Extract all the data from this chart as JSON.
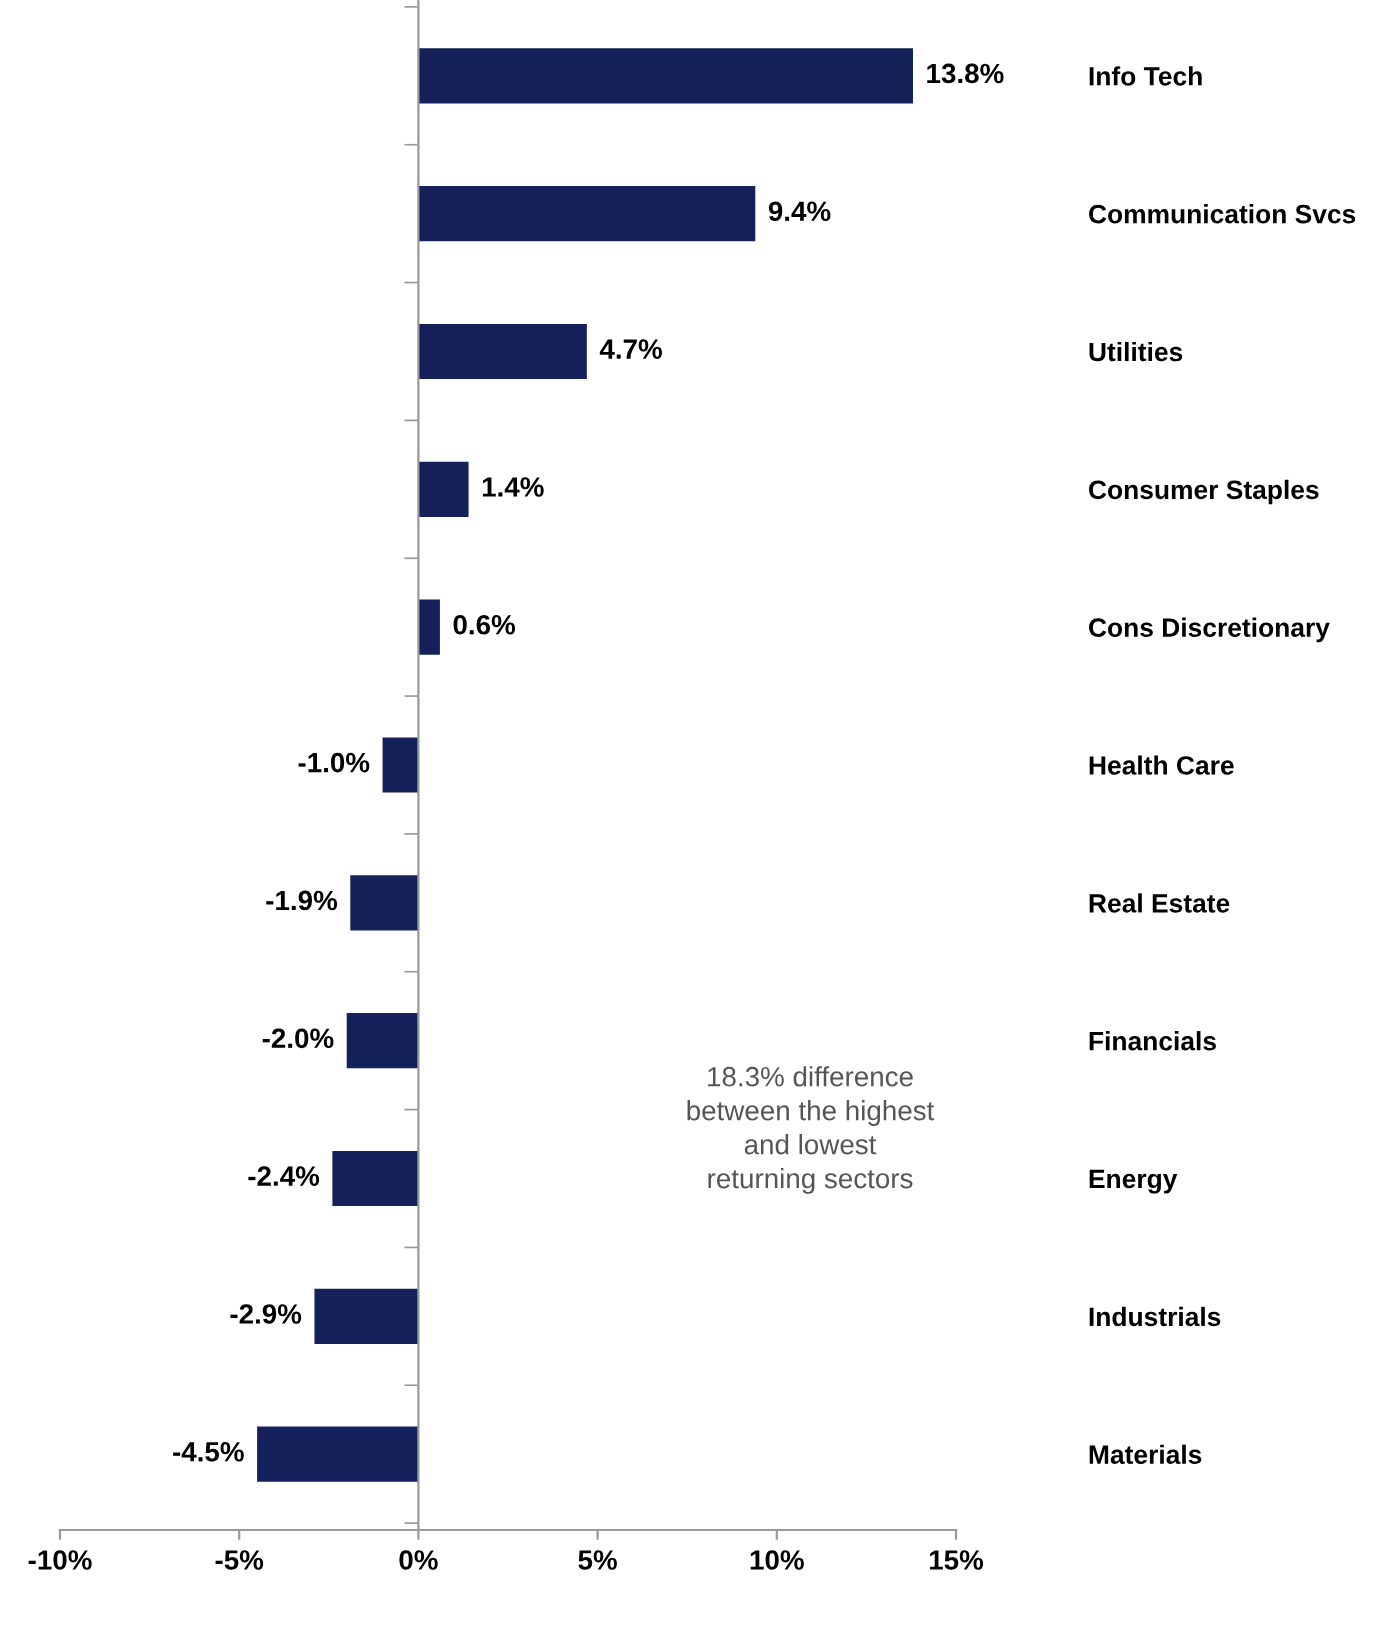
{
  "chart_data": {
    "type": "bar",
    "orientation": "horizontal",
    "categories": [
      "Info Tech",
      "Communication Svcs",
      "Utilities",
      "Consumer Staples",
      "Cons Discretionary",
      "Health Care",
      "Real Estate",
      "Financials",
      "Energy",
      "Industrials",
      "Materials"
    ],
    "values": [
      13.8,
      9.4,
      4.7,
      1.4,
      0.6,
      -1.0,
      -1.9,
      -2.0,
      -2.4,
      -2.9,
      -4.5
    ],
    "value_labels": [
      "13.8%",
      "9.4%",
      "4.7%",
      "1.4%",
      "0.6%",
      "-1.0%",
      "-1.9%",
      "-2.0%",
      "-2.4%",
      "-2.9%",
      "-4.5%"
    ],
    "color": "#14215a",
    "xlim": [
      -10,
      15
    ],
    "xticks": [
      {
        "value": -10,
        "label": "-10%"
      },
      {
        "value": -5,
        "label": "-5%"
      },
      {
        "value": 0,
        "label": "0%"
      },
      {
        "value": 5,
        "label": "5%"
      },
      {
        "value": 10,
        "label": "10%"
      },
      {
        "value": 15,
        "label": "15%"
      }
    ],
    "annotations": [
      "18.3% difference\nbetween the highest\nand lowest\nreturning sectors"
    ]
  }
}
